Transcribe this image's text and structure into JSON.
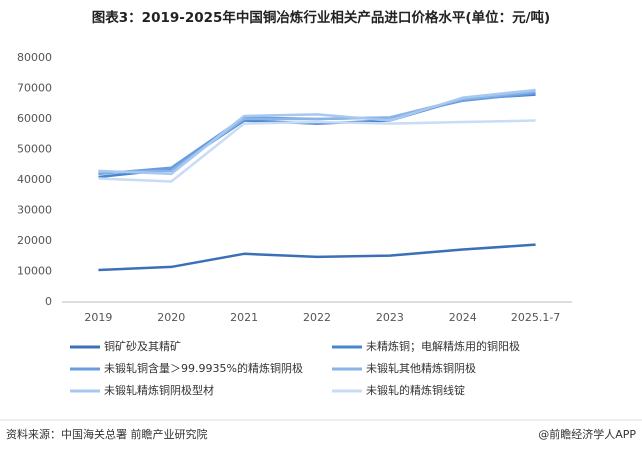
{
  "chart_data": {
    "type": "line",
    "title": "图表3：2019-2025年中国铜冶炼行业相关产品进口价格水平(单位：元/吨)",
    "categories": [
      "2019",
      "2020",
      "2021",
      "2022",
      "2023",
      "2024",
      "2025.1-7"
    ],
    "series": [
      {
        "name": "铜矿砂及其精矿",
        "color": "#3b70b8",
        "values": [
          10500,
          11500,
          15800,
          14800,
          15200,
          17200,
          18800
        ]
      },
      {
        "name": "未精炼铜；电解精炼用的铜阳极",
        "color": "#4a86d0",
        "values": [
          41000,
          43500,
          59500,
          58500,
          59500,
          66500,
          68000
        ]
      },
      {
        "name": "未锻轧铜含量＞99.9935%的精炼铜阴极",
        "color": "#6a9de0",
        "values": [
          42000,
          44000,
          60500,
          60000,
          60500,
          66000,
          68500
        ]
      },
      {
        "name": "未锻轧其他精炼铜阴极",
        "color": "#8ab4e8",
        "values": [
          42500,
          43000,
          60000,
          60000,
          60500,
          66500,
          69000
        ]
      },
      {
        "name": "未锻轧精炼铜阴极型材",
        "color": "#a8c8f0",
        "values": [
          43000,
          42000,
          61000,
          61500,
          59500,
          67000,
          69500
        ]
      },
      {
        "name": "未锻轧的精炼铜线锭",
        "color": "#c8dcf5",
        "values": [
          40500,
          39500,
          58500,
          59000,
          58500,
          59000,
          59500
        ]
      }
    ],
    "ylim": [
      0,
      80000
    ],
    "yticks": [
      0,
      10000,
      20000,
      30000,
      40000,
      50000,
      60000,
      70000,
      80000
    ],
    "grid": false,
    "source": "资料来源：中国海关总署 前瞻产业研究院",
    "credit": "@前瞻经济学人APP"
  }
}
